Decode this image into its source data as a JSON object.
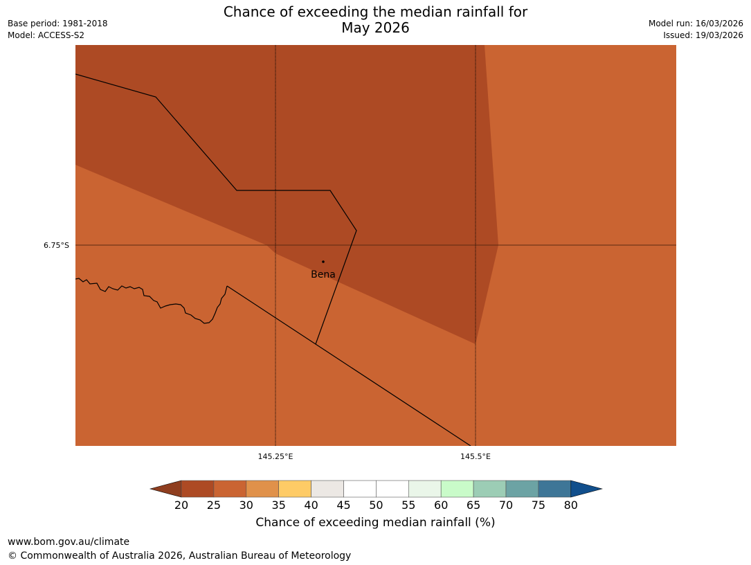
{
  "title": {
    "line1": "Chance of exceeding the median rainfall for",
    "line2": "May 2026"
  },
  "meta": {
    "base_period": "Base period: 1981-2018",
    "model": "Model: ACCESS-S2",
    "model_run": "Model run: 16/03/2026",
    "issued": "Issued: 19/03/2026"
  },
  "map": {
    "latitude_label": "6.75°S",
    "longitude_labels": [
      "145.25°E",
      "145.5°E"
    ],
    "town": {
      "name": "Bena"
    },
    "colors": {
      "dark_region": "#ad4a24",
      "light_region": "#ca6432",
      "grid_line": "#5a2a12",
      "border": "#000000"
    }
  },
  "colorbar": {
    "title": "Chance of exceeding median rainfall (%)",
    "ticks": [
      "20",
      "25",
      "30",
      "35",
      "40",
      "45",
      "50",
      "55",
      "60",
      "65",
      "70",
      "75",
      "80"
    ],
    "under_color": "#8f3e1f",
    "over_color": "#114f8c",
    "bins": [
      "#ad4a24",
      "#ca6432",
      "#e0914a",
      "#fecb66",
      "#ece8e4",
      "#ffffff",
      "#ffffff",
      "#eaf6e9",
      "#c9fbc9",
      "#9ccdb5",
      "#6ca3a4",
      "#3e7697"
    ]
  },
  "footer": {
    "url": "www.bom.gov.au/climate",
    "copyright": "© Commonwealth of Australia 2026, Australian Bureau of Meteorology"
  }
}
